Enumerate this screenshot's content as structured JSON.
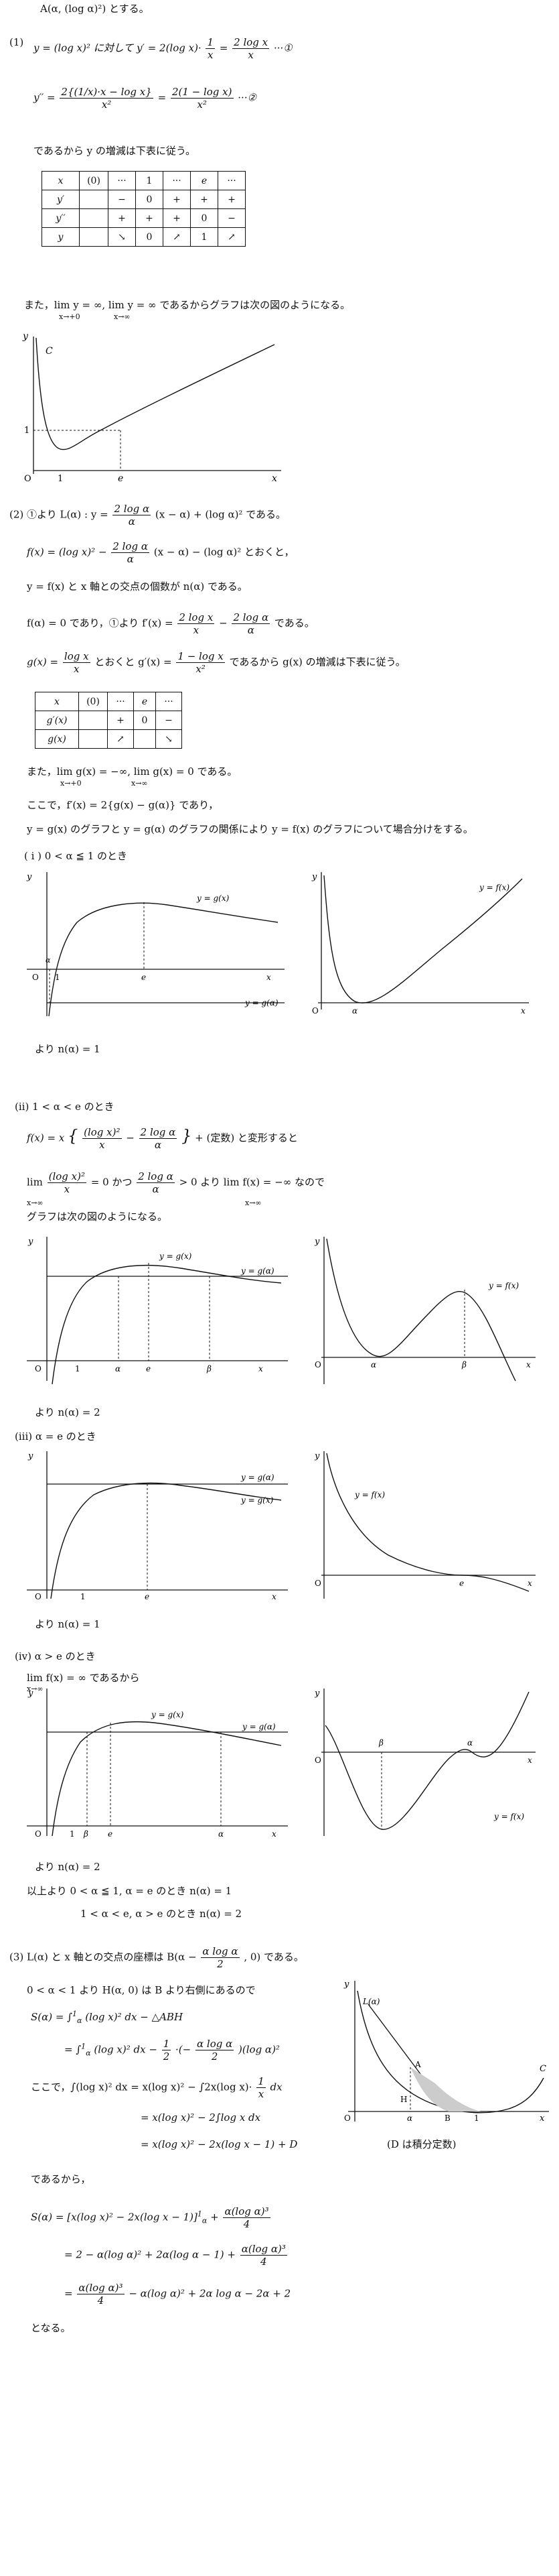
{
  "intro": "A(α, (log α)²) とする。",
  "p1": {
    "label": "(1)",
    "eq_left": "y = (log x)²  に対して  y′ = 2(log x)·",
    "frac1_num": "1",
    "frac1_den": "x",
    "eq_eq": "=",
    "frac2_num": "2 log x",
    "frac2_den": "x",
    "eq_mark": "···①",
    "y2_left": "y′′ =",
    "y2_frac1_num": "2{(1/x)·x − log x}",
    "y2_frac1_den": "x²",
    "y2_eq": "=",
    "y2_frac2_num": "2(1 − log x)",
    "y2_frac2_den": "x²",
    "y2_mark": "···②",
    "note": "であるから y の増減は下表に従う。",
    "table": {
      "rows": [
        [
          "x",
          "(0)",
          "···",
          "1",
          "···",
          "e",
          "···"
        ],
        [
          "y′",
          "",
          "−",
          "0",
          "+",
          "+",
          "+"
        ],
        [
          "y′′",
          "",
          "+",
          "+",
          "+",
          "0",
          "−"
        ],
        [
          "y",
          "",
          "↘",
          "0",
          "↗",
          "1",
          "↗"
        ]
      ]
    },
    "limits": "また，lim y = ∞, lim y = ∞  であるからグラフは次の図のようになる。",
    "lim_sub1": "x→+0",
    "lim_sub2": "x→∞",
    "graph": {
      "y_label": "y",
      "c_label": "C",
      "one_y": "1",
      "o_label": "O",
      "one_x": "1",
      "e_label": "e",
      "x_label": "x"
    }
  },
  "p2": {
    "line1a": "(2)  ①より  L(α) : y =",
    "line1_frac_num": "2 log α",
    "line1_frac_den": "α",
    "line1b": "(x − α) + (log α)²  である。",
    "line2a": "f(x) = (log x)² −",
    "line2_frac_num": "2 log α",
    "line2_frac_den": "α",
    "line2b": "(x − α) − (log α)²  とおくと，",
    "line3": "y = f(x) と x 軸との交点の個数が n(α) である。",
    "line4a": "f(α) = 0  であり，①より  f′(x) =",
    "line4_frac1_num": "2 log x",
    "line4_frac1_den": "x",
    "line4_minus": "−",
    "line4_frac2_num": "2 log α",
    "line4_frac2_den": "α",
    "line4b": "である。",
    "line5a": "g(x) =",
    "line5_frac1_num": "log x",
    "line5_frac1_den": "x",
    "line5b": "とおくと  g′(x) =",
    "line5_frac2_num": "1 − log x",
    "line5_frac2_den": "x²",
    "line5c": "であるから g(x) の増減は下表に従う。",
    "table": {
      "rows": [
        [
          "x",
          "(0)",
          "···",
          "e",
          "···"
        ],
        [
          "g′(x)",
          "",
          "+",
          "0",
          "−"
        ],
        [
          "g(x)",
          "",
          "↗",
          "",
          "↘"
        ]
      ]
    },
    "limits": "また，lim g(x) = −∞, lim g(x) = 0  である。",
    "lim_sub1": "x→+0",
    "lim_sub2": "x→∞",
    "line6": "ここで，f′(x) = 2{g(x) − g(α)}  であり，",
    "line7": "y = g(x) のグラフと y = g(α) のグラフの関係により y = f(x) のグラフについて場合分けをする。",
    "case1": {
      "title": "( i )  0 < α ≦ 1  のとき",
      "g_label": "y = g(x)",
      "f_label": "y = f(x)",
      "ga_label": "y = g(α)",
      "y": "y",
      "x": "x",
      "o": "O",
      "alpha": "α",
      "one": "1",
      "e": "e",
      "result": "より  n(α) = 1"
    },
    "case2": {
      "title": "(ii)  1 < α < e  のとき",
      "eq_a": "f(x) = x",
      "eq_frac1_num": "(log x)²",
      "eq_frac1_den": "x",
      "eq_minus": "−",
      "eq_frac2_num": "2 log α",
      "eq_frac2_den": "α",
      "eq_b": "+ (定数)  と変形すると",
      "lim_a": "lim",
      "lim_sub": "x→∞",
      "lim_frac_num": "(log x)²",
      "lim_frac_den": "x",
      "lim_b": "= 0  かつ",
      "lim_frac2_num": "2 log α",
      "lim_frac2_den": "α",
      "lim_c": "> 0  より  lim f(x) = −∞  なので",
      "lim_sub2": "x→∞",
      "line": "グラフは次の図のようになる。",
      "g_label": "y = g(x)",
      "f_label": "y = f(x)",
      "ga_label": "y = g(α)",
      "y": "y",
      "x": "x",
      "o": "O",
      "alpha": "α",
      "one": "1",
      "e": "e",
      "beta": "β",
      "result": "より  n(α) = 2"
    },
    "case3": {
      "title": "(iii)  α = e  のとき",
      "g_label": "y = g(x)",
      "f_label": "y = f(x)",
      "ga_label": "y = g(α)",
      "y": "y",
      "x": "x",
      "o": "O",
      "one": "1",
      "e": "e",
      "result": "より  n(α) = 1"
    },
    "case4": {
      "title": "(iv)  α > e  のとき",
      "lim": "lim f(x) = ∞  であるから",
      "lim_sub": "x→∞",
      "g_label": "y = g(x)",
      "f_label": "y = f(x)",
      "ga_label": "y = g(α)",
      "y": "y",
      "x": "x",
      "o": "O",
      "alpha": "α",
      "one": "1",
      "e": "e",
      "beta": "β",
      "result": "より  n(α) = 2"
    },
    "summary1": "以上より  0 < α ≦ 1, α = e  のとき  n(α) = 1",
    "summary2": "1 < α < e, α > e  のとき  n(α) = 2"
  },
  "p3": {
    "line1a": "(3)  L(α) と x 軸との交点の座標は  B(α −",
    "line1_frac_num": "α log α",
    "line1_frac_den": "2",
    "line1b": ", 0)  である。",
    "line2": "0 < α < 1  より  H(α, 0)  は B より右側にあるので",
    "s1a": "S(α) = ∫",
    "s1_lim_top": "1",
    "s1_lim_bot": "α",
    "s1b": "(log x)² dx − △ABH",
    "s2a": "= ∫",
    "s2b": "(log x)² dx −",
    "s2_frac_num": "1",
    "s2_frac_den": "2",
    "s2c": "·(−",
    "s2_frac2_num": "α log α",
    "s2_frac2_den": "2",
    "s2d": ")(log α)²",
    "k1a": "ここで，∫(log x)² dx = x(log x)² − ∫2x(log x)·",
    "k1_frac_num": "1",
    "k1_frac_den": "x",
    "k1b": "dx",
    "k2": "= x(log x)² − 2∫log x dx",
    "k3": "= x(log x)² − 2x(log x − 1) + D",
    "k3_note": "(D は積分定数)",
    "then": "であるから，",
    "r1a": "S(α) = [x(log x)² − 2x(log x − 1)]",
    "r1_lim_top": "1",
    "r1_lim_bot": "α",
    "r1b": "+",
    "r1_frac_num": "α(log α)³",
    "r1_frac_den": "4",
    "r2a": "= 2 − α(log α)² + 2α(log α − 1) +",
    "r2_frac_num": "α(log α)³",
    "r2_frac_den": "4",
    "r3_frac_num": "α(log α)³",
    "r3_frac_den": "4",
    "r3b": "− α(log α)² + 2α log α − 2α + 2",
    "end": "となる。",
    "graph": {
      "y": "y",
      "la": "L(α)",
      "c": "C",
      "a": "A",
      "h": "H",
      "o": "O",
      "alpha": "α",
      "b": "B",
      "one": "1",
      "x": "x"
    }
  }
}
